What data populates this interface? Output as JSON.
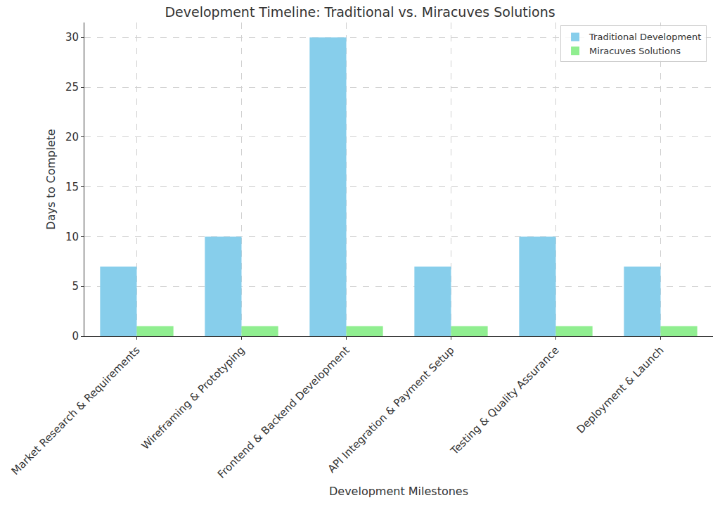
{
  "chart_data": {
    "type": "bar",
    "title": "Development Timeline: Traditional vs. Miracuves Solutions",
    "x_label": "Development Milestones",
    "y_label": "Days to Complete",
    "categories": [
      "Market Research & Requirements",
      "Wireframing & Prototyping",
      "Frontend & Backend Development",
      "API Integration & Payment Setup",
      "Testing & Quality Assurance",
      "Deployment & Launch"
    ],
    "series": [
      {
        "name": "Traditional Development",
        "color": "#87ceeb",
        "values": [
          7,
          10,
          30,
          7,
          10,
          7
        ]
      },
      {
        "name": "Miracuves Solutions",
        "color": "#90ee90",
        "values": [
          1,
          1,
          1,
          1,
          1,
          1
        ]
      }
    ],
    "ylim": [
      0,
      31.5
    ],
    "yticks": [
      0,
      5,
      10,
      15,
      20,
      25,
      30
    ],
    "grid": true,
    "legend": "upper right"
  }
}
